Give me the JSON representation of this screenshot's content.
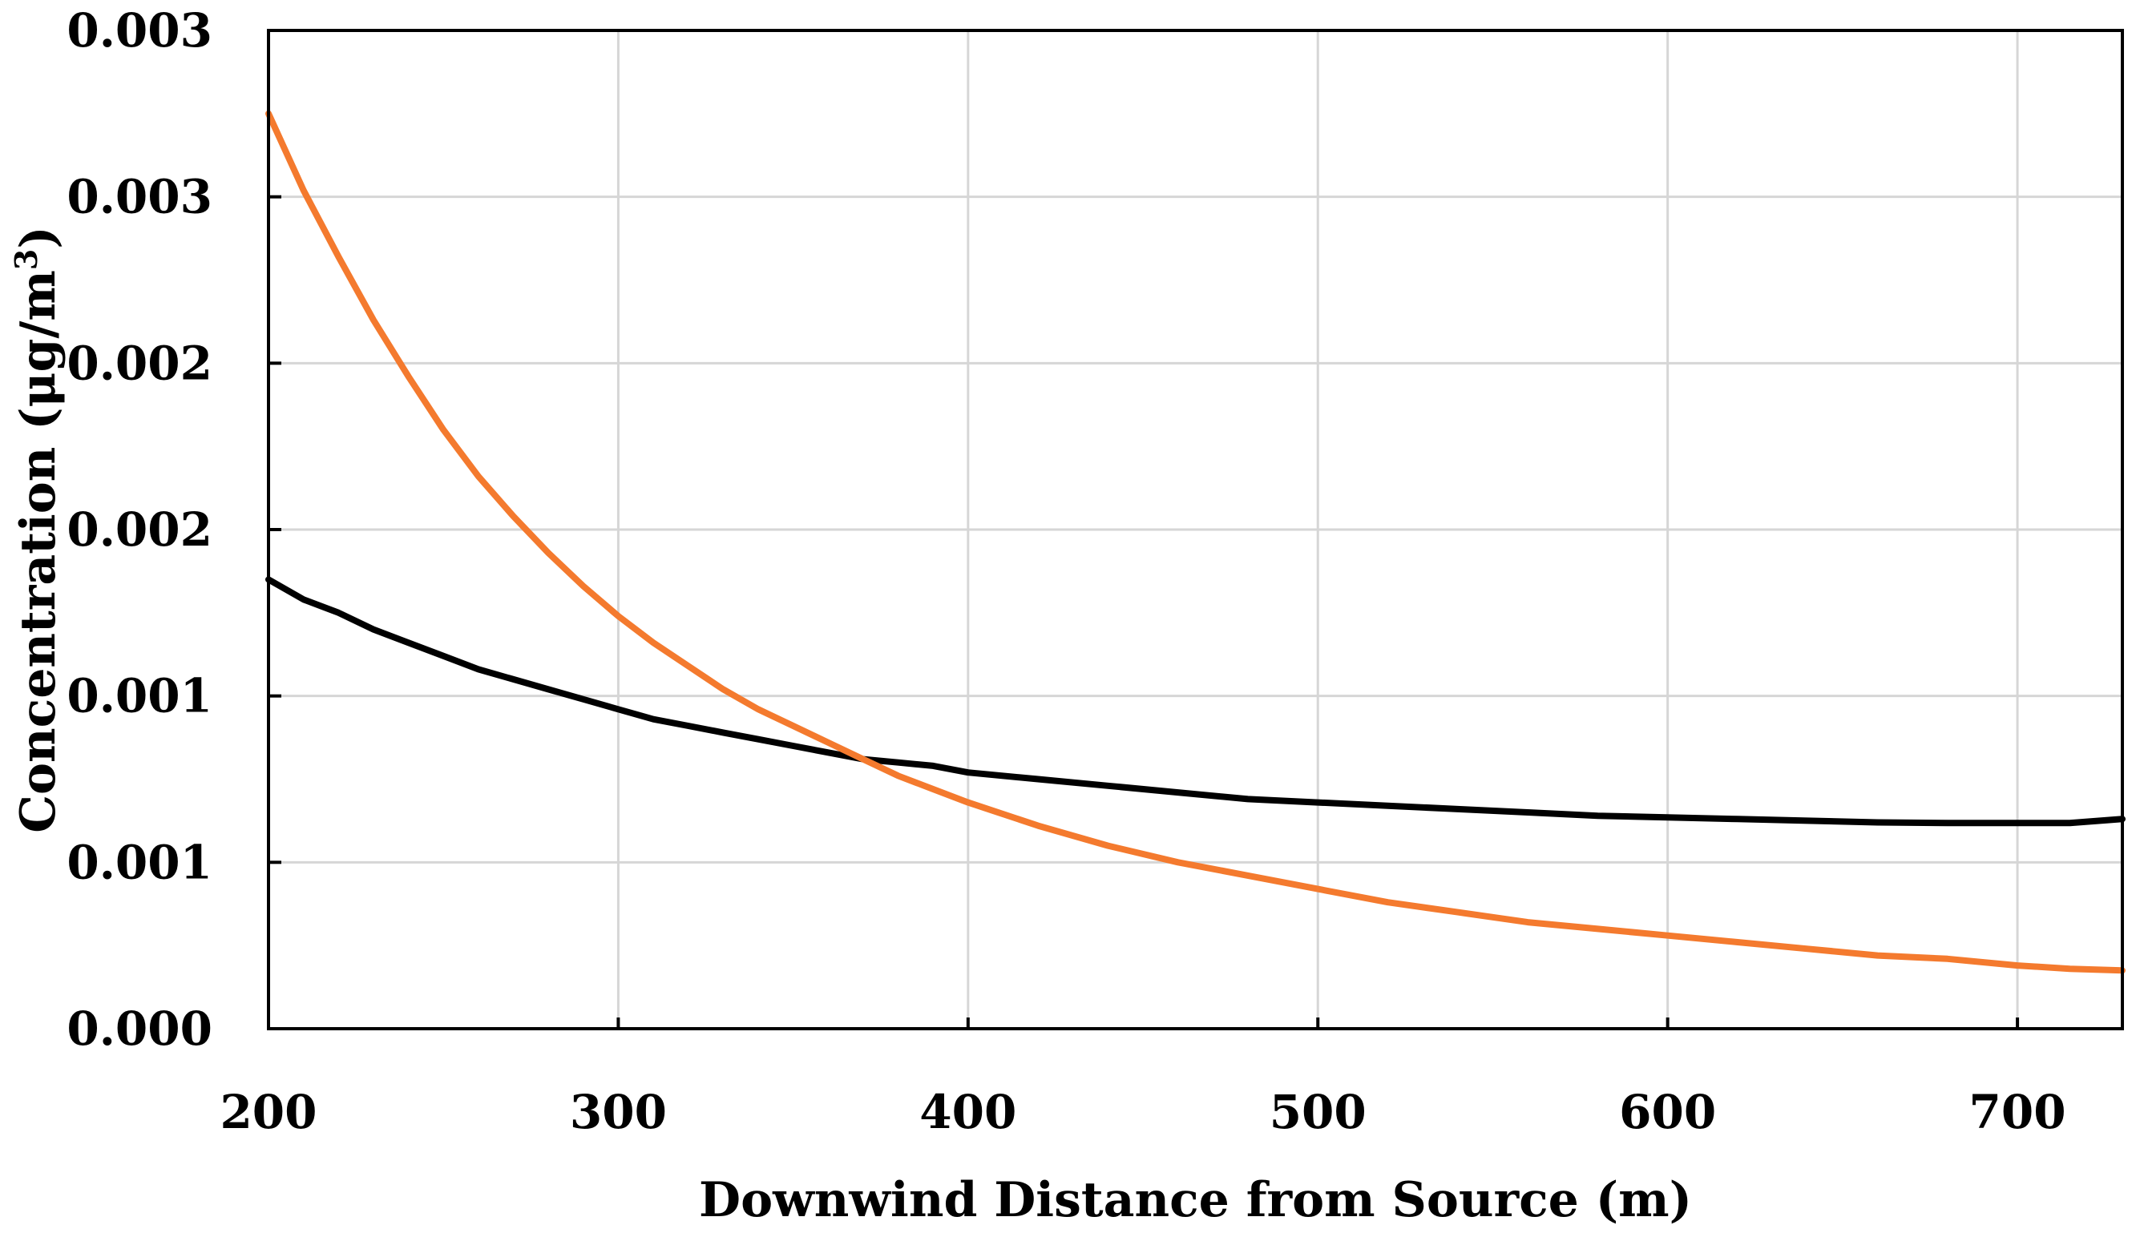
{
  "chart_data": {
    "type": "line",
    "title": "",
    "xlabel": "Downwind Distance from Source (m)",
    "ylabel_main": "Concentration (μg/m",
    "ylabel_sup": "3",
    "ylabel_close": ")",
    "xlim": [
      200,
      730
    ],
    "ylim": [
      0,
      0.003
    ],
    "grid": true,
    "x_ticks": [
      200,
      300,
      400,
      500,
      600,
      700
    ],
    "x_tick_labels": [
      "200",
      "300",
      "400",
      "500",
      "600",
      "700"
    ],
    "y_ticks": [
      0,
      0.0005,
      0.001,
      0.0015,
      0.002,
      0.0025,
      0.003
    ],
    "y_tick_labels": [
      "0.000",
      "0.001",
      "0.001",
      "0.002",
      "0.002",
      "0.003",
      "0.003"
    ],
    "series": [
      {
        "name": "black-series",
        "color": "#000000",
        "x": [
          200,
          210,
          220,
          230,
          240,
          250,
          260,
          270,
          280,
          290,
          300,
          310,
          320,
          330,
          340,
          350,
          360,
          370,
          380,
          390,
          400,
          420,
          440,
          460,
          480,
          500,
          520,
          540,
          560,
          580,
          600,
          620,
          640,
          660,
          680,
          700,
          715,
          730
        ],
        "y": [
          0.00135,
          0.00129,
          0.00125,
          0.0012,
          0.00116,
          0.00112,
          0.00108,
          0.00105,
          0.00102,
          0.00099,
          0.00096,
          0.00093,
          0.00091,
          0.00089,
          0.00087,
          0.00085,
          0.00083,
          0.00081,
          0.0008,
          0.00079,
          0.00077,
          0.00075,
          0.00073,
          0.00071,
          0.00069,
          0.00068,
          0.00067,
          0.00066,
          0.00065,
          0.00064,
          0.000635,
          0.00063,
          0.000625,
          0.00062,
          0.000618,
          0.000618,
          0.000618,
          0.00063
        ]
      },
      {
        "name": "orange-series",
        "color": "#F47A2E",
        "x": [
          200,
          210,
          220,
          230,
          240,
          250,
          260,
          270,
          280,
          290,
          300,
          310,
          320,
          330,
          340,
          350,
          360,
          370,
          380,
          390,
          400,
          420,
          440,
          460,
          480,
          500,
          520,
          540,
          560,
          580,
          600,
          620,
          640,
          660,
          680,
          700,
          715,
          730
        ],
        "y": [
          0.00275,
          0.00252,
          0.00232,
          0.00213,
          0.00196,
          0.0018,
          0.00166,
          0.00154,
          0.00143,
          0.00133,
          0.00124,
          0.00116,
          0.00109,
          0.00102,
          0.00096,
          0.00091,
          0.00086,
          0.00081,
          0.00076,
          0.00072,
          0.00068,
          0.00061,
          0.00055,
          0.0005,
          0.00046,
          0.00042,
          0.00038,
          0.00035,
          0.00032,
          0.0003,
          0.00028,
          0.00026,
          0.00024,
          0.00022,
          0.00021,
          0.00019,
          0.00018,
          0.000175
        ]
      }
    ]
  }
}
